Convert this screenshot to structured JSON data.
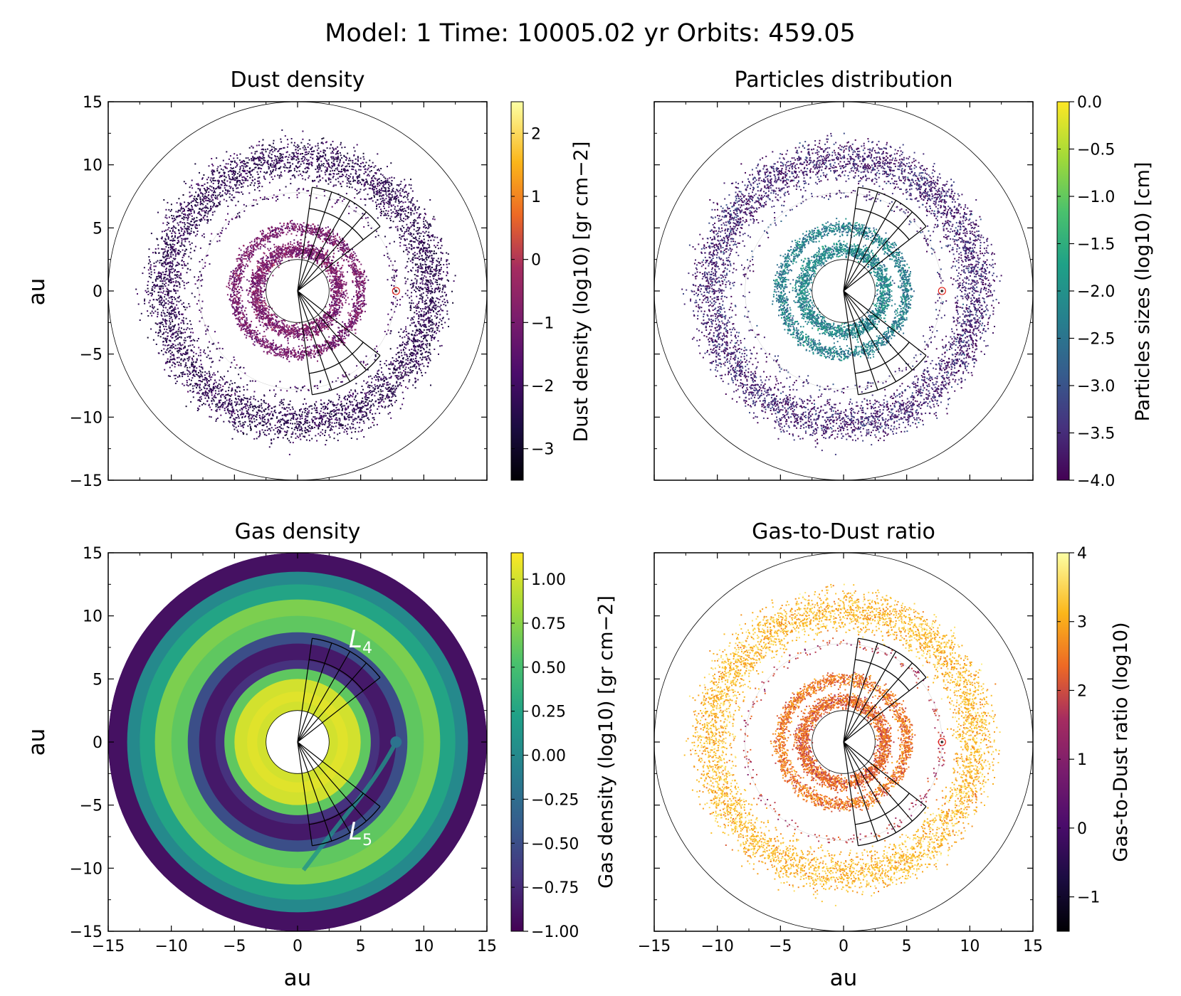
{
  "suptitle": "Model: 1  Time: 10005.02 yr  Orbits: 459.05",
  "axis_tick_labels": [
    "−15",
    "−10",
    "−5",
    "0",
    "5",
    "10",
    "15"
  ],
  "chart_data": [
    {
      "type": "scatter",
      "id": "dust",
      "title": "Dust density",
      "xlabel": "",
      "ylabel": "au",
      "xlim": [
        -15,
        15
      ],
      "ylim": [
        -15,
        15
      ],
      "cmap": "inferno",
      "clim": [
        -3.5,
        2.5
      ],
      "colorbar_label": "Dust density (log10) [gr cm−2]",
      "colorbar_ticks": [
        -3,
        -2,
        -1,
        0,
        1,
        2
      ],
      "colorbar_ticklabels": [
        "−3",
        "−2",
        "−1",
        "0",
        "1",
        "2"
      ],
      "rings": [
        {
          "r": 10.5,
          "width": 1.8,
          "value": -2.3,
          "count": 5200
        },
        {
          "r": 5.0,
          "width": 0.6,
          "value": -1.0,
          "count": 1800
        },
        {
          "r": 3.3,
          "width": 0.7,
          "value": -0.9,
          "count": 2000
        },
        {
          "r": 7.8,
          "width": 0.5,
          "value": -2.0,
          "count": 260
        }
      ],
      "planet": {
        "x": 7.8,
        "y": 0.0
      }
    },
    {
      "type": "scatter",
      "id": "particles",
      "title": "Particles distribution",
      "xlabel": "",
      "ylabel": "",
      "xlim": [
        -15,
        15
      ],
      "ylim": [
        -15,
        15
      ],
      "cmap": "viridis",
      "clim": [
        -4.0,
        0.0
      ],
      "colorbar_label": "Particles sizes (log10) [cm]",
      "colorbar_ticks": [
        -4.0,
        -3.5,
        -3.0,
        -2.5,
        -2.0,
        -1.5,
        -1.0,
        -0.5,
        0.0
      ],
      "colorbar_ticklabels": [
        "−4.0",
        "−3.5",
        "−3.0",
        "−2.5",
        "−2.0",
        "−1.5",
        "−1.0",
        "−0.5",
        "0.0"
      ],
      "rings": [
        {
          "r": 10.5,
          "width": 1.8,
          "value": -3.6,
          "count": 5000
        },
        {
          "r": 5.0,
          "width": 0.6,
          "value": -2.3,
          "count": 1800
        },
        {
          "r": 3.3,
          "width": 0.7,
          "value": -2.2,
          "count": 1900
        },
        {
          "r": 7.8,
          "width": 0.5,
          "value": -3.5,
          "count": 260
        }
      ],
      "planet": {
        "x": 7.8,
        "y": 0.0
      }
    },
    {
      "type": "heatmap",
      "id": "gas",
      "title": "Gas density",
      "xlabel": "au",
      "ylabel": "au",
      "xlim": [
        -15,
        15
      ],
      "ylim": [
        -15,
        15
      ],
      "cmap": "viridis",
      "clim": [
        -1.0,
        1.15
      ],
      "colorbar_label": "Gas density (log10) [gr cm−2]",
      "colorbar_ticks": [
        -1.0,
        -0.75,
        -0.5,
        -0.25,
        0.0,
        0.25,
        0.5,
        0.75,
        1.0
      ],
      "colorbar_ticklabels": [
        "−1.00",
        "−0.75",
        "−0.50",
        "−0.25",
        "0.00",
        "0.25",
        "0.50",
        "0.75",
        "1.00"
      ],
      "radial_profile": [
        [
          2.5,
          0.7
        ],
        [
          3.2,
          1.0
        ],
        [
          4.0,
          1.05
        ],
        [
          5.0,
          1.0
        ],
        [
          5.8,
          0.6
        ],
        [
          6.5,
          -0.7
        ],
        [
          7.8,
          -0.85
        ],
        [
          8.7,
          -0.5
        ],
        [
          10.0,
          0.6
        ],
        [
          11.3,
          0.7
        ],
        [
          12.5,
          0.25
        ],
        [
          13.5,
          0.0
        ],
        [
          15.0,
          -0.9
        ]
      ],
      "planet": {
        "x": 7.8,
        "y": 0.0
      },
      "lagrange_labels": {
        "L4": "L",
        "L4_sub": "4",
        "L5": "L",
        "L5_sub": "5"
      }
    },
    {
      "type": "scatter",
      "id": "g2d",
      "title": "Gas-to-Dust ratio",
      "xlabel": "au",
      "ylabel": "",
      "xlim": [
        -15,
        15
      ],
      "ylim": [
        -15,
        15
      ],
      "cmap": "inferno",
      "clim": [
        -1.5,
        4.0
      ],
      "colorbar_label": "Gas-to-Dust ratio (log10)",
      "colorbar_ticks": [
        -1,
        0,
        1,
        2,
        3,
        4
      ],
      "colorbar_ticklabels": [
        "−1",
        "0",
        "1",
        "2",
        "3",
        "4"
      ],
      "rings": [
        {
          "r": 10.5,
          "width": 1.8,
          "value": 3.2,
          "count": 5200
        },
        {
          "r": 5.0,
          "width": 0.6,
          "value": 2.5,
          "count": 1800
        },
        {
          "r": 3.3,
          "width": 0.7,
          "value": 2.3,
          "count": 2000
        },
        {
          "r": 7.8,
          "width": 0.5,
          "value": 1.8,
          "count": 260
        }
      ],
      "planet": {
        "x": 7.8,
        "y": 0.0
      }
    }
  ],
  "overlays": {
    "sectors": [
      {
        "name": "L4",
        "angle_min": 38,
        "angle_max": 82,
        "r_inner": 6.6,
        "r_outer": 8.3
      },
      {
        "name": "L5",
        "angle_min": -82,
        "angle_max": -38,
        "r_inner": 6.6,
        "r_outer": 8.3
      }
    ],
    "reference_circles_au": [
      2.5,
      15
    ]
  }
}
